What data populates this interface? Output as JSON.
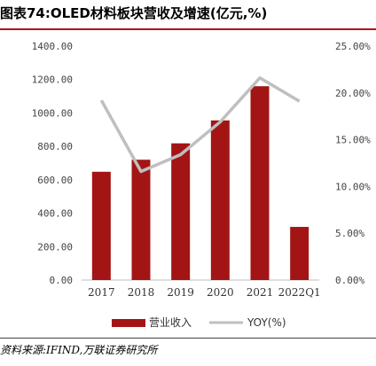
{
  "header": {
    "title": "图表74:OLED材料板块营收及增速(亿元,%)"
  },
  "footer": {
    "source": "资料来源:IFIND,万联证券研究所"
  },
  "colors": {
    "bar": "#a31515",
    "line": "#bfbfbf",
    "accent_rule": "#b5121b"
  },
  "chart_data": {
    "type": "bar",
    "categories": [
      "2017",
      "2018",
      "2019",
      "2020",
      "2021",
      "2022Q1"
    ],
    "series": [
      {
        "name": "营业收入",
        "type": "bar",
        "axis": "left",
        "values": [
          648,
          720,
          818,
          955,
          1160,
          318
        ]
      },
      {
        "name": "YOY(%)",
        "type": "line",
        "axis": "right",
        "values": [
          19.2,
          11.6,
          13.4,
          16.9,
          21.6,
          19.1
        ]
      }
    ],
    "y_left": {
      "ylim": [
        0,
        1400
      ],
      "ticks": [
        "0.00",
        "200.00",
        "400.00",
        "600.00",
        "800.00",
        "1000.00",
        "1200.00",
        "1400.00"
      ]
    },
    "y_right": {
      "ylim": [
        0,
        25
      ],
      "ticks": [
        "0.00%",
        "5.00%",
        "10.00%",
        "15.00%",
        "20.00%",
        "25.00%"
      ]
    },
    "legend": [
      "营业收入",
      "YOY(%)"
    ],
    "legend_position": "bottom",
    "grid": false
  }
}
